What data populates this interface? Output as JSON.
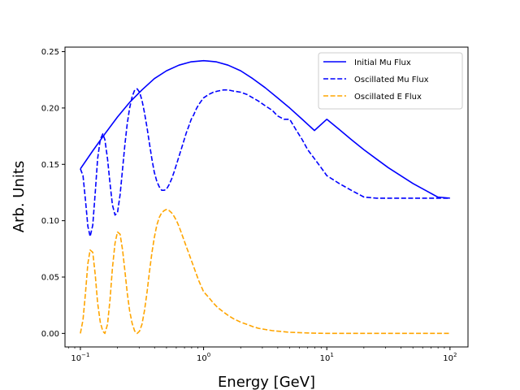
{
  "chart_data": {
    "type": "line",
    "title": "",
    "xlabel": "Energy [GeV]",
    "ylabel": "Arb. Units",
    "xscale": "log",
    "xlim": [
      0.075,
      140
    ],
    "ylim": [
      -0.012,
      0.254
    ],
    "x_ticks": [
      {
        "value": 0.1,
        "base": "10",
        "exp": "−1"
      },
      {
        "value": 1,
        "base": "10",
        "exp": "0"
      },
      {
        "value": 10,
        "base": "10",
        "exp": "1"
      },
      {
        "value": 100,
        "base": "10",
        "exp": "2"
      }
    ],
    "y_ticks": [
      {
        "value": 0.0,
        "label": "0.00"
      },
      {
        "value": 0.05,
        "label": "0.05"
      },
      {
        "value": 0.1,
        "label": "0.10"
      },
      {
        "value": 0.15,
        "label": "0.15"
      },
      {
        "value": 0.2,
        "label": "0.20"
      },
      {
        "value": 0.25,
        "label": "0.25"
      }
    ],
    "grid": false,
    "legend_position": "top-right",
    "series": [
      {
        "name": "Initial Mu Flux",
        "color": "#0000ff",
        "dash": "solid",
        "x": [
          0.1,
          0.126,
          0.158,
          0.2,
          0.251,
          0.316,
          0.398,
          0.5,
          0.631,
          0.794,
          1,
          1.26,
          1.58,
          2,
          2.51,
          3.16,
          3.98,
          5,
          6.31,
          7.94,
          10,
          12.6,
          15.8,
          20,
          25.1,
          31.6,
          39.8,
          50,
          63.1,
          79.4,
          100
        ],
        "y": [
          0.146,
          0.162,
          0.177,
          0.192,
          0.205,
          0.216,
          0.226,
          0.233,
          0.238,
          0.241,
          0.242,
          0.241,
          0.238,
          0.233,
          0.226,
          0.218,
          0.209,
          0.2,
          0.19,
          0.18,
          0.19,
          0.181,
          0.172,
          0.163,
          0.155,
          0.147,
          0.14,
          0.133,
          0.127,
          0.121,
          0.12
        ]
      },
      {
        "name": "Oscillated Mu Flux",
        "color": "#0000ff",
        "dash": "dashed",
        "x": [
          0.1,
          0.105,
          0.11,
          0.115,
          0.12,
          0.126,
          0.132,
          0.138,
          0.145,
          0.152,
          0.158,
          0.166,
          0.174,
          0.182,
          0.191,
          0.2,
          0.21,
          0.22,
          0.23,
          0.24,
          0.251,
          0.263,
          0.276,
          0.289,
          0.302,
          0.316,
          0.331,
          0.347,
          0.363,
          0.38,
          0.398,
          0.417,
          0.437,
          0.457,
          0.479,
          0.5,
          0.525,
          0.55,
          0.575,
          0.603,
          0.631,
          0.661,
          0.692,
          0.724,
          0.759,
          0.794,
          0.832,
          0.871,
          0.912,
          0.955,
          1,
          1.1,
          1.2,
          1.3,
          1.45,
          1.58,
          1.75,
          2,
          2.25,
          2.51,
          2.8,
          3.16,
          3.6,
          3.98,
          4.5,
          5,
          5.6,
          6.31,
          7,
          7.94,
          9,
          10,
          12.6,
          15.8,
          20,
          25.1,
          31.6,
          39.8,
          50,
          63.1,
          79.4,
          100
        ],
        "y": [
          0.146,
          0.14,
          0.118,
          0.095,
          0.086,
          0.096,
          0.125,
          0.155,
          0.172,
          0.177,
          0.172,
          0.155,
          0.133,
          0.114,
          0.105,
          0.107,
          0.123,
          0.146,
          0.168,
          0.186,
          0.2,
          0.21,
          0.216,
          0.217,
          0.214,
          0.207,
          0.196,
          0.183,
          0.169,
          0.155,
          0.143,
          0.135,
          0.13,
          0.127,
          0.127,
          0.128,
          0.132,
          0.137,
          0.143,
          0.15,
          0.157,
          0.164,
          0.171,
          0.178,
          0.184,
          0.19,
          0.194,
          0.199,
          0.203,
          0.206,
          0.209,
          0.212,
          0.214,
          0.215,
          0.216,
          0.216,
          0.215,
          0.214,
          0.212,
          0.209,
          0.206,
          0.202,
          0.198,
          0.193,
          0.19,
          0.19,
          0.181,
          0.172,
          0.163,
          0.155,
          0.147,
          0.14,
          0.133,
          0.127,
          0.121,
          0.12,
          0.12,
          0.12,
          0.12,
          0.12,
          0.12,
          0.12
        ]
      },
      {
        "name": "Oscillated E Flux",
        "color": "#ffa500",
        "dash": "dashed",
        "x": [
          0.1,
          0.105,
          0.11,
          0.115,
          0.12,
          0.126,
          0.132,
          0.138,
          0.145,
          0.152,
          0.158,
          0.166,
          0.174,
          0.182,
          0.191,
          0.2,
          0.21,
          0.22,
          0.23,
          0.24,
          0.251,
          0.263,
          0.276,
          0.289,
          0.302,
          0.316,
          0.331,
          0.347,
          0.363,
          0.38,
          0.398,
          0.417,
          0.437,
          0.457,
          0.479,
          0.5,
          0.525,
          0.55,
          0.575,
          0.603,
          0.631,
          0.661,
          0.692,
          0.724,
          0.759,
          0.794,
          0.832,
          0.871,
          0.912,
          0.955,
          1,
          1.1,
          1.2,
          1.3,
          1.45,
          1.58,
          1.75,
          2,
          2.25,
          2.51,
          2.8,
          3.16,
          3.6,
          3.98,
          4.5,
          5,
          5.6,
          6.31,
          7,
          7.94,
          9,
          10,
          12.6,
          15.8,
          20,
          25.1,
          31.6,
          39.8,
          50,
          63.1,
          79.4,
          100
        ],
        "y": [
          0.0,
          0.012,
          0.036,
          0.062,
          0.074,
          0.072,
          0.052,
          0.027,
          0.01,
          0.002,
          0.0,
          0.008,
          0.03,
          0.058,
          0.08,
          0.09,
          0.088,
          0.074,
          0.055,
          0.036,
          0.02,
          0.009,
          0.002,
          0.0,
          0.002,
          0.008,
          0.02,
          0.036,
          0.054,
          0.071,
          0.085,
          0.096,
          0.103,
          0.107,
          0.109,
          0.11,
          0.109,
          0.107,
          0.104,
          0.1,
          0.095,
          0.089,
          0.083,
          0.077,
          0.071,
          0.065,
          0.059,
          0.053,
          0.047,
          0.042,
          0.037,
          0.032,
          0.027,
          0.023,
          0.019,
          0.016,
          0.013,
          0.01,
          0.008,
          0.006,
          0.0045,
          0.0035,
          0.0025,
          0.002,
          0.0015,
          0.001,
          0.0008,
          0.0006,
          0.0004,
          0.0002,
          0.0001,
          0.0,
          0.0,
          0.0,
          0.0,
          0.0,
          0.0,
          0.0,
          0.0,
          0.0,
          0.0,
          0.0
        ]
      }
    ]
  }
}
